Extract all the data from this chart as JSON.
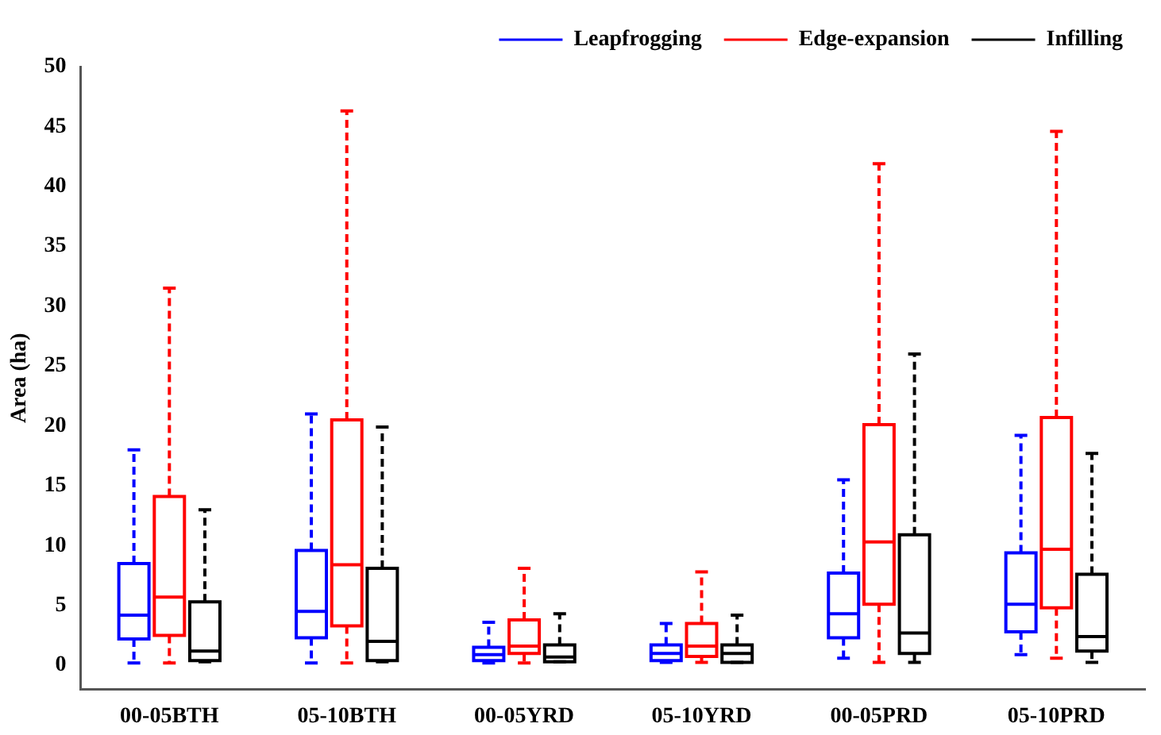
{
  "chart_data": {
    "type": "box",
    "ylabel": "Area (ha)",
    "categories": [
      "00-05BTH",
      "05-10BTH",
      "00-05YRD",
      "05-10YRD",
      "00-05PRD",
      "05-10PRD"
    ],
    "series": [
      {
        "name": "Leapfrogging",
        "color": "#0000ff",
        "boxes": [
          {
            "low": 0.2,
            "q1": 2.2,
            "median": 4.2,
            "q3": 8.5,
            "high": 18
          },
          {
            "low": 0.2,
            "q1": 2.3,
            "median": 4.5,
            "q3": 9.6,
            "high": 21
          },
          {
            "low": 0.2,
            "q1": 0.4,
            "median": 0.9,
            "q3": 1.5,
            "high": 3.6
          },
          {
            "low": 0.25,
            "q1": 0.4,
            "median": 1,
            "q3": 1.7,
            "high": 3.5
          },
          {
            "low": 0.6,
            "q1": 2.3,
            "median": 4.3,
            "q3": 7.7,
            "high": 15.5
          },
          {
            "low": 0.9,
            "q1": 2.8,
            "median": 5.1,
            "q3": 9.4,
            "high": 19.2
          }
        ]
      },
      {
        "name": "Edge-expansion",
        "color": "#ff0000",
        "boxes": [
          {
            "low": 0.2,
            "q1": 2.5,
            "median": 5.7,
            "q3": 14.1,
            "high": 31.5
          },
          {
            "low": 0.2,
            "q1": 3.3,
            "median": 8.4,
            "q3": 20.5,
            "high": 46.3
          },
          {
            "low": 0.2,
            "q1": 1,
            "median": 1.6,
            "q3": 3.8,
            "high": 8.1
          },
          {
            "low": 0.25,
            "q1": 0.75,
            "median": 1.6,
            "q3": 3.5,
            "high": 7.8
          },
          {
            "low": 0.25,
            "q1": 5.1,
            "median": 10.3,
            "q3": 20.1,
            "high": 41.9
          },
          {
            "low": 0.6,
            "q1": 4.8,
            "median": 9.7,
            "q3": 20.7,
            "high": 44.6
          }
        ]
      },
      {
        "name": "Infilling",
        "color": "#000000",
        "boxes": [
          {
            "low": 0.3,
            "q1": 0.4,
            "median": 1.2,
            "q3": 5.3,
            "high": 13
          },
          {
            "low": 0.3,
            "q1": 0.4,
            "median": 2,
            "q3": 8.1,
            "high": 19.9
          },
          {
            "low": 0.3,
            "q1": 0.3,
            "median": 0.7,
            "q3": 1.7,
            "high": 4.3
          },
          {
            "low": 0.25,
            "q1": 0.25,
            "median": 1,
            "q3": 1.7,
            "high": 4.2
          },
          {
            "low": 0.25,
            "q1": 1,
            "median": 2.7,
            "q3": 10.9,
            "high": 26
          },
          {
            "low": 0.25,
            "q1": 1.2,
            "median": 2.4,
            "q3": 7.6,
            "high": 17.7
          }
        ]
      }
    ],
    "ylim": [
      -2,
      50
    ],
    "yticks": [
      0,
      5,
      10,
      15,
      20,
      25,
      30,
      35,
      40,
      45,
      50
    ],
    "grid": false,
    "legend": "top right",
    "line_style": "dashed"
  }
}
